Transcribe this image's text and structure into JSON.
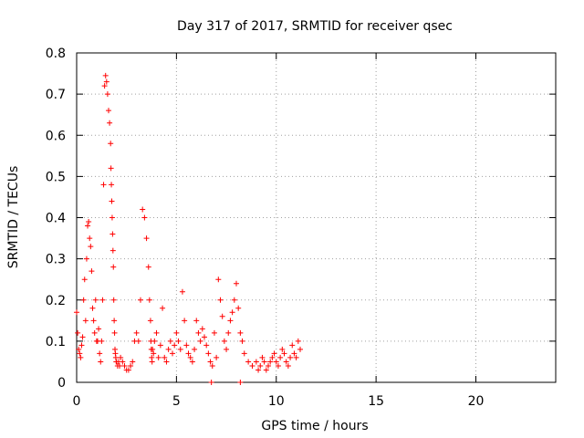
{
  "chart_data": {
    "type": "scatter",
    "title": "Day 317 of 2017, SRMTID for receiver qsec",
    "xlabel": "GPS time / hours",
    "ylabel": "SRMTID / TECUs",
    "xlim": [
      0,
      24
    ],
    "ylim": [
      0,
      0.8
    ],
    "xticks": [
      0,
      5,
      10,
      15,
      20
    ],
    "yticks": [
      0,
      0.1,
      0.2,
      0.3,
      0.4,
      0.5,
      0.6,
      0.7,
      0.8
    ],
    "xtick_labels": [
      "0",
      "5",
      "10",
      "15",
      "20"
    ],
    "ytick_labels": [
      "0",
      "0.1",
      "0.2",
      "0.3",
      "0.4",
      "0.5",
      "0.6",
      "0.7",
      "0.8"
    ],
    "grid": true,
    "series": [
      {
        "name": "SRMTID",
        "marker": "plus",
        "color": "#ff0000",
        "x": [
          0.0,
          0.05,
          0.1,
          0.15,
          0.2,
          0.25,
          0.3,
          0.35,
          0.4,
          0.45,
          0.5,
          0.55,
          0.6,
          0.65,
          0.7,
          0.75,
          0.8,
          0.85,
          0.9,
          0.95,
          1.0,
          1.05,
          1.1,
          1.15,
          1.2,
          1.25,
          1.3,
          1.35,
          1.4,
          1.45,
          1.5,
          1.55,
          1.6,
          1.65,
          1.7,
          1.72,
          1.74,
          1.76,
          1.78,
          1.8,
          1.82,
          1.84,
          1.86,
          1.88,
          1.9,
          1.92,
          1.94,
          1.96,
          1.98,
          2.0,
          2.05,
          2.1,
          2.15,
          2.2,
          2.3,
          2.4,
          2.5,
          2.6,
          2.7,
          2.8,
          2.9,
          3.0,
          3.1,
          3.2,
          3.3,
          3.4,
          3.5,
          3.6,
          3.65,
          3.7,
          3.72,
          3.74,
          3.76,
          3.78,
          3.8,
          3.85,
          3.9,
          4.0,
          4.1,
          4.2,
          4.3,
          4.4,
          4.5,
          4.6,
          4.7,
          4.8,
          4.9,
          5.0,
          5.1,
          5.2,
          5.3,
          5.4,
          5.5,
          5.6,
          5.7,
          5.8,
          5.9,
          6.0,
          6.1,
          6.2,
          6.3,
          6.4,
          6.5,
          6.6,
          6.7,
          6.8,
          6.9,
          7.0,
          7.1,
          7.2,
          7.3,
          7.4,
          7.5,
          7.6,
          7.7,
          7.8,
          7.9,
          8.0,
          8.1,
          8.2,
          8.3,
          8.4,
          8.6,
          8.8,
          9.0,
          9.1,
          9.2,
          9.3,
          9.4,
          9.5,
          9.6,
          9.7,
          9.8,
          9.9,
          10.0,
          10.1,
          10.2,
          10.3,
          10.4,
          10.5,
          10.6,
          10.7,
          10.8,
          10.9,
          11.0,
          11.1,
          11.2,
          6.75,
          8.2
        ],
        "y": [
          0.17,
          0.12,
          0.08,
          0.07,
          0.06,
          0.09,
          0.11,
          0.2,
          0.25,
          0.15,
          0.3,
          0.38,
          0.39,
          0.35,
          0.33,
          0.27,
          0.18,
          0.15,
          0.12,
          0.2,
          0.1,
          0.1,
          0.13,
          0.07,
          0.05,
          0.1,
          0.2,
          0.48,
          0.72,
          0.745,
          0.73,
          0.7,
          0.66,
          0.63,
          0.58,
          0.52,
          0.48,
          0.44,
          0.4,
          0.36,
          0.32,
          0.28,
          0.2,
          0.15,
          0.12,
          0.08,
          0.07,
          0.06,
          0.05,
          0.05,
          0.04,
          0.05,
          0.04,
          0.06,
          0.05,
          0.04,
          0.03,
          0.03,
          0.04,
          0.05,
          0.1,
          0.12,
          0.1,
          0.2,
          0.42,
          0.4,
          0.35,
          0.28,
          0.2,
          0.15,
          0.1,
          0.08,
          0.06,
          0.05,
          0.08,
          0.07,
          0.1,
          0.12,
          0.06,
          0.09,
          0.18,
          0.06,
          0.05,
          0.08,
          0.1,
          0.07,
          0.09,
          0.12,
          0.1,
          0.08,
          0.22,
          0.15,
          0.09,
          0.07,
          0.06,
          0.05,
          0.08,
          0.15,
          0.12,
          0.1,
          0.13,
          0.11,
          0.09,
          0.07,
          0.05,
          0.04,
          0.12,
          0.06,
          0.25,
          0.2,
          0.16,
          0.1,
          0.08,
          0.12,
          0.15,
          0.17,
          0.2,
          0.24,
          0.18,
          0.12,
          0.1,
          0.07,
          0.05,
          0.04,
          0.05,
          0.03,
          0.04,
          0.06,
          0.05,
          0.03,
          0.04,
          0.05,
          0.06,
          0.07,
          0.05,
          0.04,
          0.06,
          0.08,
          0.07,
          0.05,
          0.04,
          0.06,
          0.09,
          0.07,
          0.06,
          0.1,
          0.08,
          0.0,
          0.0
        ]
      }
    ]
  }
}
